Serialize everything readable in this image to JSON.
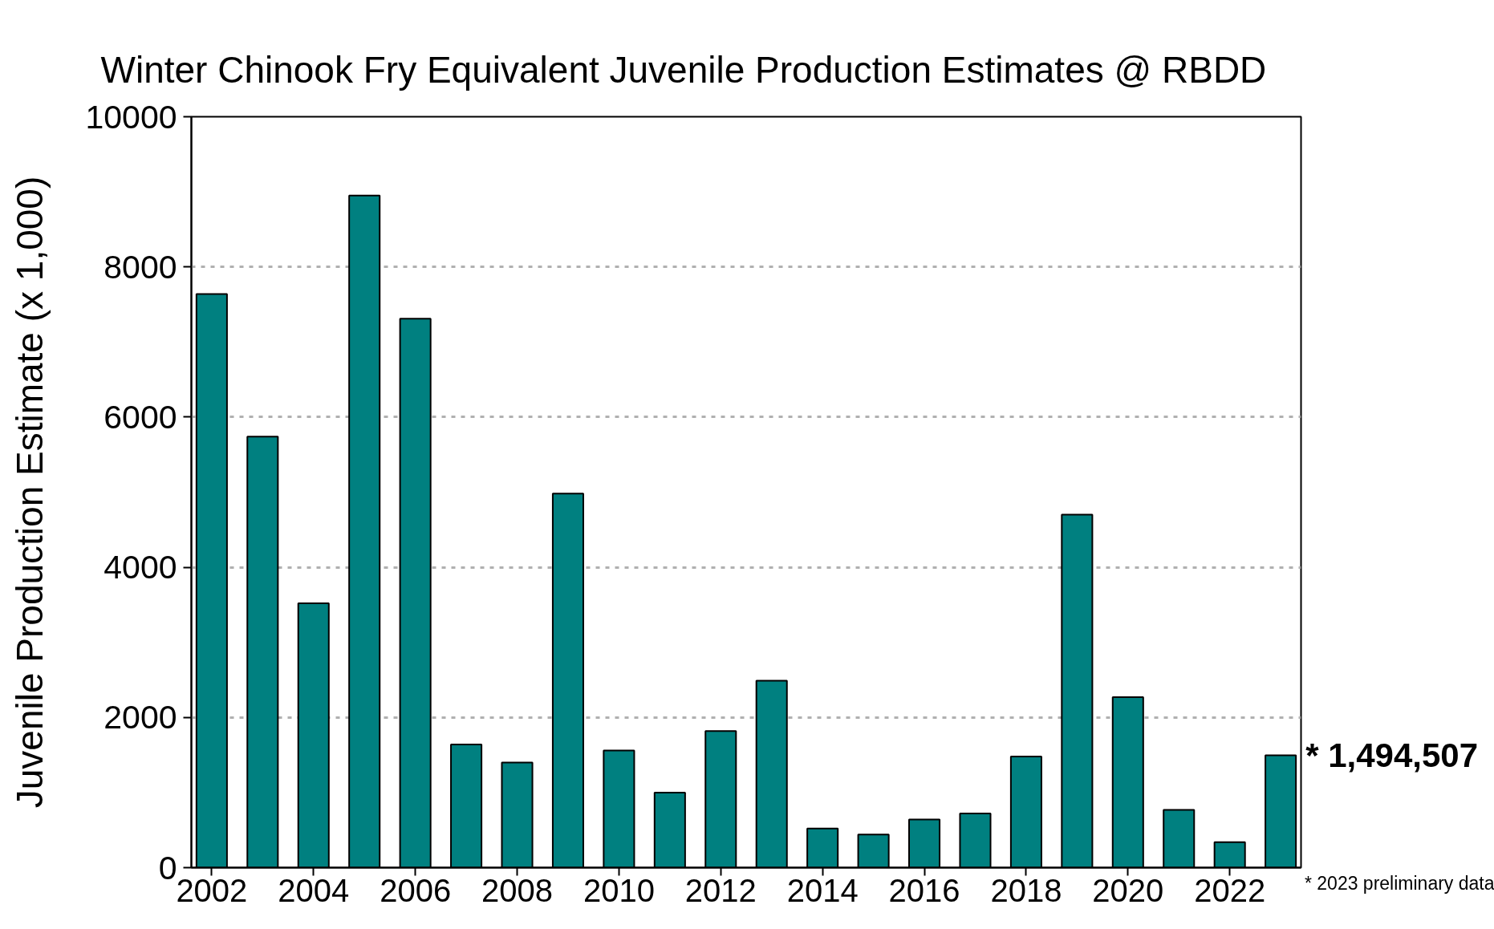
{
  "chart_data": {
    "type": "bar",
    "title": "Winter Chinook Fry Equivalent Juvenile Production Estimates @ RBDD",
    "ylabel": "Juvenile Production Estimate (x 1,000)",
    "x": [
      2002,
      2003,
      2004,
      2005,
      2006,
      2007,
      2008,
      2009,
      2010,
      2011,
      2012,
      2013,
      2014,
      2015,
      2016,
      2017,
      2018,
      2019,
      2020,
      2021,
      2022,
      2023
    ],
    "values": [
      7640,
      5740,
      3520,
      8950,
      7310,
      1640,
      1400,
      4980,
      1560,
      1000,
      1820,
      2490,
      520,
      440,
      640,
      720,
      1480,
      4700,
      2270,
      770,
      340,
      1494.507
    ],
    "color": "#008080",
    "xlim": [
      2001.6,
      2023.4
    ],
    "xticks": [
      2002,
      2004,
      2006,
      2008,
      2010,
      2012,
      2014,
      2016,
      2018,
      2020,
      2022
    ],
    "ylim": [
      0,
      10000
    ],
    "yticks": [
      0,
      2000,
      4000,
      6000,
      8000,
      10000
    ],
    "grid": "y",
    "annotations": [
      {
        "text": "* 1,494,507",
        "x": 2023,
        "y": 1494.507
      },
      "* 2023 preliminary data"
    ]
  }
}
